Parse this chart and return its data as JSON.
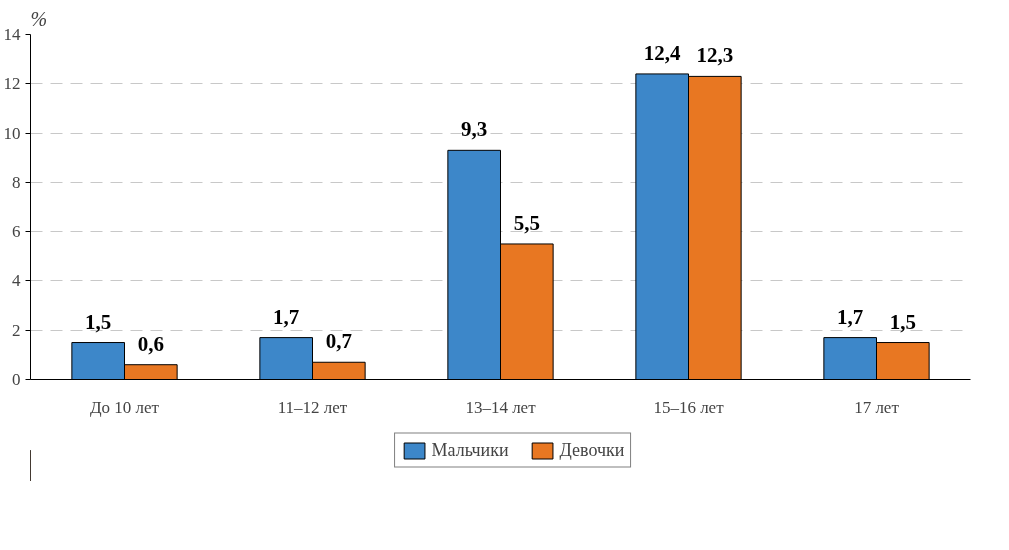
{
  "chart_data": {
    "type": "bar",
    "ylabel": "%",
    "categories": [
      "До 10 лет",
      "11–12 лет",
      "13–14 лет",
      "15–16 лет",
      "17 лет"
    ],
    "series": [
      {
        "name": "Мальчики",
        "color": "#3d87c9",
        "values": [
          1.5,
          1.7,
          9.3,
          12.4,
          1.7
        ],
        "value_labels": [
          "1,5",
          "1,7",
          "9,3",
          "12,4",
          "1,7"
        ]
      },
      {
        "name": "Девочки",
        "color": "#e87722",
        "values": [
          0.6,
          0.7,
          5.5,
          12.3,
          1.5
        ],
        "value_labels": [
          "0,6",
          "0,7",
          "5,5",
          "12,3",
          "1,5"
        ]
      }
    ],
    "ylim": [
      0,
      14
    ],
    "yticks": [
      0,
      2,
      4,
      6,
      8,
      10,
      12,
      14
    ],
    "grid": "y",
    "legend": "bottom"
  }
}
